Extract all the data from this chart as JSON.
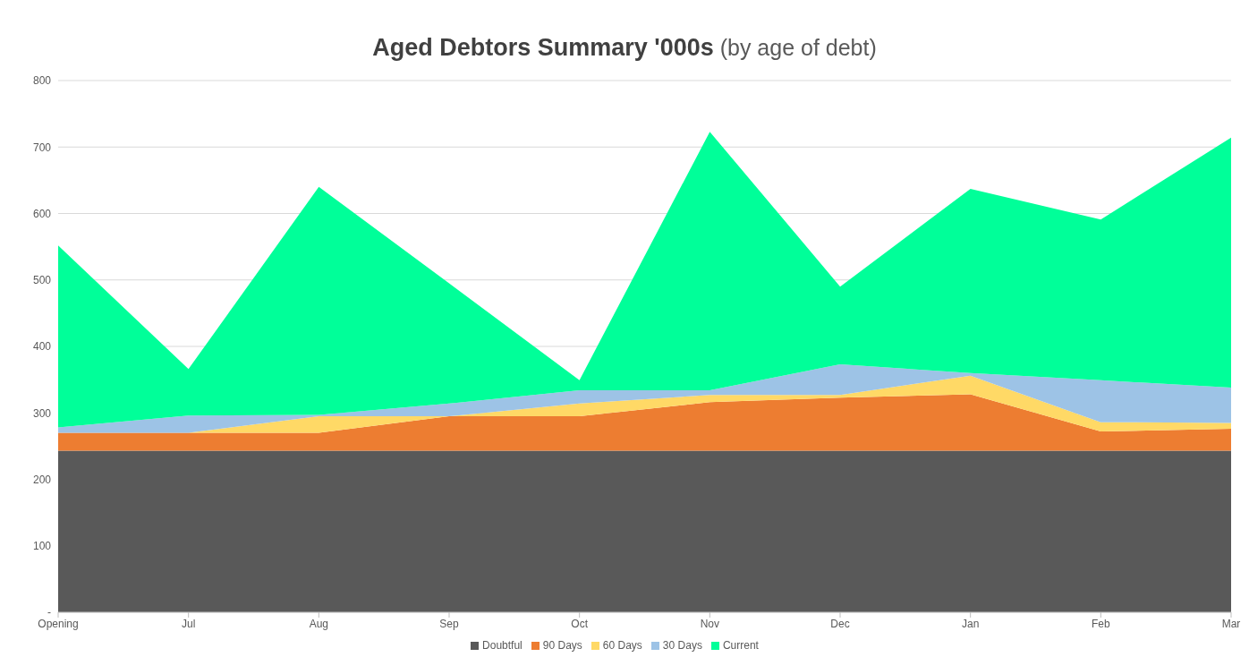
{
  "chart_data": {
    "type": "area",
    "title": "Aged Debtors Summary '000s",
    "subtitle": "(by age of debt)",
    "categories": [
      "Opening",
      "Jul",
      "Aug",
      "Sep",
      "Oct",
      "Nov",
      "Dec",
      "Jan",
      "Feb",
      "Mar"
    ],
    "stacked": true,
    "series": [
      {
        "name": "Doubtful",
        "color": "#595959",
        "values": [
          243,
          243,
          243,
          243,
          243,
          243,
          243,
          243,
          243,
          243
        ]
      },
      {
        "name": "90 Days",
        "color": "#ed7d31",
        "values": [
          27,
          27,
          27,
          52,
          52,
          73,
          80,
          85,
          29,
          33
        ]
      },
      {
        "name": "60 Days",
        "color": "#ffd966",
        "values": [
          0,
          0,
          25,
          0,
          19,
          11,
          4,
          28,
          14,
          9
        ]
      },
      {
        "name": "30 Days",
        "color": "#9dc3e6",
        "values": [
          8,
          26,
          2,
          19,
          20,
          7,
          46,
          4,
          63,
          53
        ]
      },
      {
        "name": "Current",
        "color": "#00ff99",
        "values": [
          274,
          70,
          343,
          181,
          15,
          389,
          117,
          277,
          242,
          376
        ]
      }
    ],
    "ylim": [
      0,
      800
    ],
    "yticks": [
      {
        "value": 0,
        "label": "-"
      },
      100,
      200,
      300,
      400,
      500,
      600,
      700,
      800
    ],
    "grid": "y",
    "legend": "bottom"
  }
}
